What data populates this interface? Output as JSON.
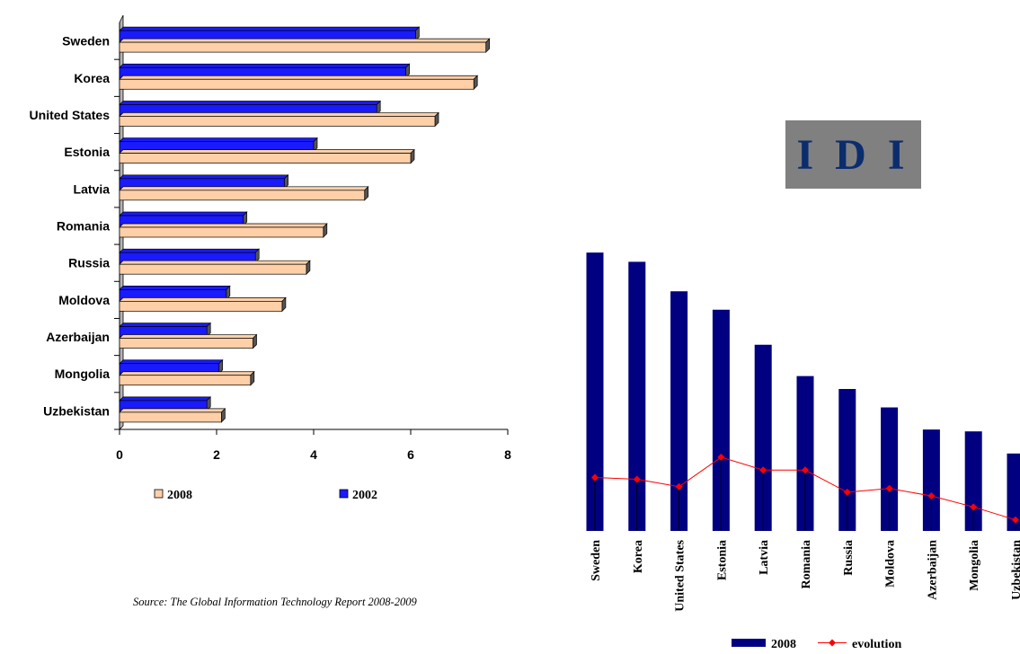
{
  "source_text": "Source: The Global Information Technology Report 2008-2009",
  "badge": {
    "text": "I D I",
    "background": "#808080",
    "color": "#0b2d6e"
  },
  "colors": {
    "bar_2008_left": "#ffd0a8",
    "bar_2002": "#1a1aff",
    "bar_2008_right": "#000080",
    "evolution": "#ff0000"
  },
  "chart_data": [
    {
      "type": "bar",
      "orientation": "horizontal",
      "categories": [
        "Sweden",
        "Korea",
        "United States",
        "Estonia",
        "Latvia",
        "Romania",
        "Russia",
        "Moldova",
        "Azerbaijan",
        "Mongolia",
        "Uzbekistan"
      ],
      "series": [
        {
          "name": "2002",
          "values": [
            6.1,
            5.9,
            5.3,
            4.0,
            3.4,
            2.55,
            2.8,
            2.2,
            1.8,
            2.05,
            1.8
          ]
        },
        {
          "name": "2008",
          "values": [
            7.55,
            7.3,
            6.5,
            6.0,
            5.05,
            4.2,
            3.85,
            3.35,
            2.75,
            2.7,
            2.1
          ]
        }
      ],
      "xlim": [
        0,
        8
      ],
      "xticks": [
        0,
        2,
        4,
        6,
        8
      ],
      "legend_placement": "bottom",
      "legend_order": [
        "2008",
        "2002"
      ],
      "grid": false
    },
    {
      "type": "bar",
      "categories": [
        "Sweden",
        "Korea",
        "United States",
        "Estonia",
        "Latvia",
        "Romania",
        "Russia",
        "Moldova",
        "Azerbaijan",
        "Mongolia",
        "Uzbekistan"
      ],
      "series": [
        {
          "name": "2008",
          "type": "bar",
          "values": [
            7.55,
            7.3,
            6.5,
            6.0,
            5.05,
            4.2,
            3.85,
            3.35,
            2.75,
            2.7,
            2.1
          ]
        },
        {
          "name": "evolution",
          "type": "line",
          "values": [
            1.45,
            1.4,
            1.2,
            2.0,
            1.65,
            1.65,
            1.05,
            1.15,
            0.95,
            0.65,
            0.3
          ]
        }
      ],
      "ylim": [
        0,
        7.7
      ],
      "axes_visible": false,
      "legend_placement": "bottom",
      "grid": false
    }
  ]
}
